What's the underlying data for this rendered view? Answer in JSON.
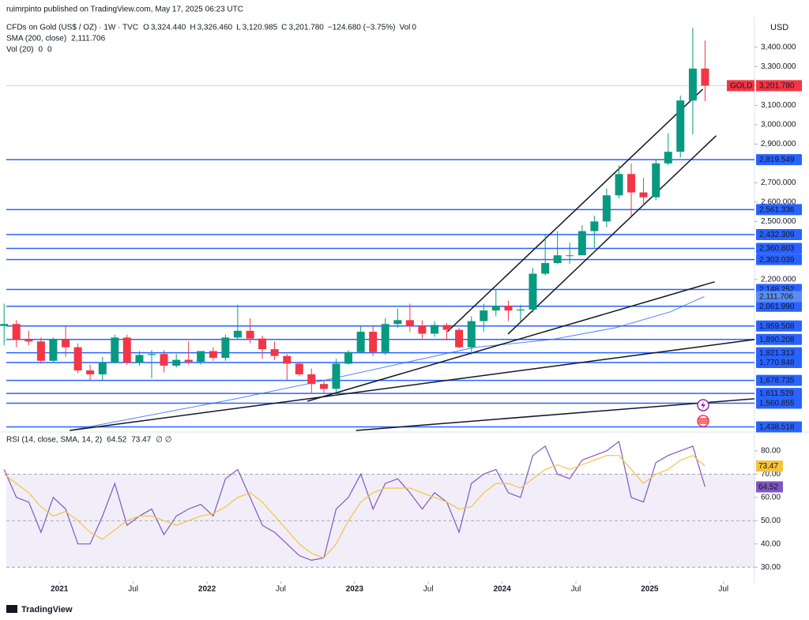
{
  "header": {
    "published": "ruimrpinto published on TradingView.com, May 17, 2025 06:23 UTC",
    "symbol": "CFDs on Gold (US$ / OZ) · 1W · TVC",
    "ohlc": [
      {
        "label": "O",
        "value": "3,324.440"
      },
      {
        "label": "H",
        "value": "3,326.460"
      },
      {
        "label": "L",
        "value": "3,120.985"
      },
      {
        "label": "C",
        "value": "3,201.780"
      }
    ],
    "change": "−124.680 (−3.75%)",
    "vol_label": "Vol",
    "vol_value": "0",
    "currency": "USD",
    "brand": "TradingView"
  },
  "chart_data": [
    {
      "type": "candlestick",
      "up_color": "#089981",
      "down_color": "#f23645",
      "x": [
        2020.625,
        2020.708,
        2020.792,
        2020.875,
        2020.958,
        2021.042,
        2021.125,
        2021.208,
        2021.292,
        2021.375,
        2021.458,
        2021.542,
        2021.625,
        2021.708,
        2021.792,
        2021.875,
        2021.958,
        2022.042,
        2022.125,
        2022.208,
        2022.292,
        2022.375,
        2022.458,
        2022.542,
        2022.625,
        2022.708,
        2022.792,
        2022.875,
        2022.958,
        2023.042,
        2023.125,
        2023.208,
        2023.292,
        2023.375,
        2023.458,
        2023.542,
        2023.625,
        2023.708,
        2023.792,
        2023.875,
        2023.958,
        2024.042,
        2024.125,
        2024.208,
        2024.292,
        2024.375,
        2024.458,
        2024.542,
        2024.625,
        2024.708,
        2024.792,
        2024.875,
        2024.958,
        2025.042,
        2025.125,
        2025.208,
        2025.292,
        2025.375
      ],
      "open": [
        1960,
        1970,
        1890,
        1880,
        1780,
        1890,
        1850,
        1730,
        1710,
        1770,
        1900,
        1770,
        1810,
        1815,
        1755,
        1785,
        1775,
        1830,
        1795,
        1900,
        1935,
        1895,
        1840,
        1805,
        1765,
        1710,
        1660,
        1635,
        1765,
        1825,
        1930,
        1825,
        1970,
        1990,
        1960,
        1920,
        1965,
        1940,
        1850,
        1985,
        2040,
        2065,
        2040,
        2045,
        2230,
        2285,
        2325,
        2325,
        2450,
        2500,
        2635,
        2745,
        2650,
        2625,
        2800,
        2860,
        3125,
        3290
      ],
      "high": [
        2075,
        1990,
        1935,
        1900,
        1900,
        1960,
        1870,
        1760,
        1800,
        1915,
        1915,
        1830,
        1835,
        1835,
        1815,
        1880,
        1830,
        1850,
        1915,
        2070,
        2000,
        1910,
        1880,
        1815,
        1770,
        1740,
        1680,
        1790,
        1835,
        1960,
        1960,
        2000,
        2050,
        2075,
        1990,
        1985,
        1975,
        1950,
        2010,
        2075,
        2150,
        2090,
        2070,
        2260,
        2430,
        2450,
        2390,
        2480,
        2530,
        2670,
        2790,
        2800,
        2725,
        2820,
        2955,
        3150,
        3500,
        3435
      ],
      "low": [
        1860,
        1850,
        1860,
        1765,
        1775,
        1800,
        1715,
        1680,
        1680,
        1765,
        1760,
        1755,
        1690,
        1720,
        1745,
        1760,
        1760,
        1780,
        1780,
        1890,
        1870,
        1790,
        1785,
        1680,
        1700,
        1615,
        1615,
        1620,
        1760,
        1820,
        1805,
        1810,
        1950,
        1930,
        1895,
        1905,
        1885,
        1845,
        1810,
        1930,
        2010,
        1985,
        1985,
        2030,
        2220,
        2280,
        2280,
        2330,
        2365,
        2470,
        2620,
        2530,
        2580,
        2610,
        2790,
        2830,
        2950,
        3120.985
      ],
      "close": [
        1970,
        1890,
        1880,
        1780,
        1890,
        1850,
        1730,
        1710,
        1770,
        1900,
        1770,
        1810,
        1815,
        1755,
        1785,
        1775,
        1830,
        1795,
        1900,
        1935,
        1895,
        1840,
        1805,
        1765,
        1710,
        1660,
        1635,
        1765,
        1825,
        1930,
        1825,
        1970,
        1990,
        1960,
        1920,
        1965,
        1940,
        1850,
        1985,
        2040,
        2065,
        2040,
        2045,
        2230,
        2285,
        2325,
        2325,
        2450,
        2500,
        2635,
        2745,
        2650,
        2625,
        2800,
        2860,
        3125,
        3290,
        3201.78
      ],
      "last_price": {
        "name": "GOLD",
        "value": 3201.78,
        "label": "3,201.780",
        "color": "#f23645"
      },
      "sma": {
        "name": "SMA (200, close)",
        "color": "#2962ff",
        "x": [
          2021.07,
          2022.2,
          2022.84,
          2023.81,
          2024.34,
          2024.77,
          2025.14,
          2025.37
        ],
        "values": [
          1420,
          1584,
          1686,
          1849,
          1890,
          1951,
          2033,
          2111.706
        ],
        "value_labels": [
          null,
          null,
          null,
          null,
          null,
          null,
          null,
          "2,111.706"
        ]
      },
      "vol": {
        "name": "Vol (20)",
        "values": [
          0,
          0
        ]
      },
      "levels": [
        {
          "value": 2819.549,
          "label": "2,819.549"
        },
        {
          "value": 2561.336,
          "label": "2,561.336"
        },
        {
          "value": 2432.309,
          "label": "2,432.309"
        },
        {
          "value": 2360.803,
          "label": "2,360.803"
        },
        {
          "value": 2303.039,
          "label": "2,303.039"
        },
        {
          "value": 2148.252,
          "label": "2,148.252"
        },
        {
          "value": 2061.99,
          "label": "2,061.990"
        },
        {
          "value": 1959.508,
          "label": "1,959.508"
        },
        {
          "value": 1890.208,
          "label": "1,890.208"
        },
        {
          "value": 1821.313,
          "label": "1,821.313"
        },
        {
          "value": 1770.848,
          "label": "1,770.848"
        },
        {
          "value": 1678.735,
          "label": "1,678.735"
        },
        {
          "value": 1611.529,
          "label": "1,611.529"
        },
        {
          "value": 1560.855,
          "label": "1,560.855"
        },
        {
          "value": 1438.518,
          "label": "1,438.518"
        }
      ],
      "level_color": "#2962ff",
      "trend_lines": [
        {
          "x": [
            2023.63,
            2025.36
          ],
          "y": [
            1931,
            3184
          ]
        },
        {
          "x": [
            2024.04,
            2025.45
          ],
          "y": [
            1918,
            2943
          ]
        },
        {
          "x": [
            2022.68,
            2025.44
          ],
          "y": [
            1571,
            2188
          ]
        },
        {
          "x": [
            2021.07,
            2025.71
          ],
          "y": [
            1420,
            1890
          ]
        },
        {
          "x": [
            2023.01,
            2025.71
          ],
          "y": [
            1420,
            1584
          ]
        }
      ],
      "xlim": [
        2020.64,
        2025.71
      ],
      "ylim": [
        1420,
        3530
      ],
      "yticks": [
        {
          "value": 3400,
          "label": "3,400.000"
        },
        {
          "value": 3300,
          "label": "3,300.000"
        },
        {
          "value": 3100,
          "label": "3,100.000"
        },
        {
          "value": 3000,
          "label": "3,000.000"
        },
        {
          "value": 2900,
          "label": "2,900.000"
        },
        {
          "value": 2700,
          "label": "2,700.000"
        },
        {
          "value": 2600,
          "label": "2,600.000"
        },
        {
          "value": 2500,
          "label": "2,500.000"
        },
        {
          "value": 2200,
          "label": "2,200.000"
        }
      ],
      "xticks": [
        {
          "value": 2021,
          "label": "2021"
        },
        {
          "value": 2021.5,
          "label": "Jul"
        },
        {
          "value": 2022,
          "label": "2022"
        },
        {
          "value": 2022.5,
          "label": "Jul"
        },
        {
          "value": 2023,
          "label": "2023"
        },
        {
          "value": 2023.5,
          "label": "Jul"
        },
        {
          "value": 2024,
          "label": "2024"
        },
        {
          "value": 2024.5,
          "label": "Jul"
        },
        {
          "value": 2025,
          "label": "2025"
        },
        {
          "value": 2025.5,
          "label": "Jul"
        }
      ]
    },
    {
      "type": "line",
      "title": "RSI (14, close, SMA, 14, 2)",
      "extra": "∅ ∅",
      "x": [
        2020.625,
        2020.708,
        2020.792,
        2020.875,
        2020.958,
        2021.042,
        2021.125,
        2021.208,
        2021.292,
        2021.375,
        2021.458,
        2021.542,
        2021.625,
        2021.708,
        2021.792,
        2021.875,
        2021.958,
        2022.042,
        2022.125,
        2022.208,
        2022.292,
        2022.375,
        2022.458,
        2022.542,
        2022.625,
        2022.708,
        2022.792,
        2022.875,
        2022.958,
        2023.042,
        2023.125,
        2023.208,
        2023.292,
        2023.375,
        2023.458,
        2023.542,
        2023.625,
        2023.708,
        2023.792,
        2023.875,
        2023.958,
        2024.042,
        2024.125,
        2024.208,
        2024.292,
        2024.375,
        2024.458,
        2024.542,
        2024.625,
        2024.708,
        2024.792,
        2024.875,
        2024.958,
        2025.042,
        2025.125,
        2025.208,
        2025.292,
        2025.375
      ],
      "series": [
        {
          "name": "RSI",
          "color": "#7e57c2",
          "values": [
            72,
            60,
            58,
            45,
            60,
            55,
            40,
            40,
            52,
            66,
            48,
            52,
            55,
            44,
            52,
            55,
            57,
            52,
            68,
            72,
            60,
            48,
            45,
            40,
            35,
            33,
            34,
            55,
            60,
            70,
            55,
            66,
            68,
            62,
            55,
            62,
            58,
            45,
            66,
            70,
            72,
            62,
            60,
            78,
            82,
            70,
            68,
            76,
            78,
            80,
            84,
            60,
            58,
            75,
            78,
            80,
            82,
            64.52
          ]
        },
        {
          "name": "SMA",
          "color": "#f5c33b",
          "values": [
            70,
            66,
            62,
            56,
            52,
            54,
            50,
            45,
            42,
            46,
            50,
            52,
            52,
            50,
            48,
            50,
            52,
            53,
            56,
            60,
            62,
            58,
            52,
            46,
            40,
            36,
            34,
            40,
            50,
            58,
            62,
            64,
            64,
            64,
            62,
            60,
            58,
            55,
            56,
            62,
            66,
            66,
            64,
            68,
            72,
            74,
            72,
            74,
            76,
            78,
            78,
            72,
            66,
            70,
            72,
            76,
            78,
            73.47
          ]
        }
      ],
      "band": [
        30,
        70
      ],
      "band_color": "#7e57c2",
      "xlim": [
        2020.64,
        2025.71
      ],
      "ylim": [
        24.3,
        87.4
      ],
      "yticks": [
        {
          "value": 30,
          "label": "30.00"
        },
        {
          "value": 40,
          "label": "40.00"
        },
        {
          "value": 50,
          "label": "50.00"
        },
        {
          "value": 60,
          "label": "60.00"
        },
        {
          "value": 70,
          "label": "70.00"
        },
        {
          "value": 80,
          "label": "80.00"
        }
      ]
    }
  ]
}
